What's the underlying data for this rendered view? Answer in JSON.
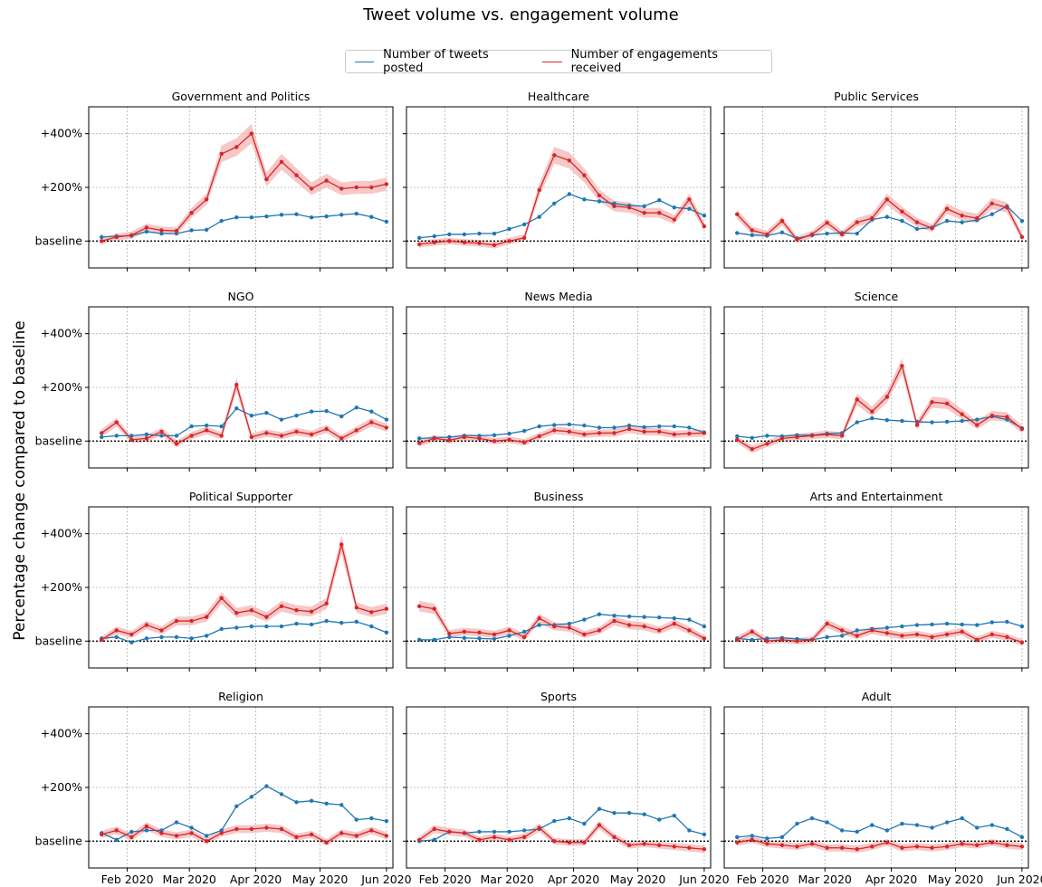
{
  "chart_data": {
    "type": "line",
    "title": "Tweet volume vs. engagement volume",
    "ylabel": "Percentage change compared to baseline",
    "xlabel": "",
    "legend": {
      "placement": "top-center",
      "items": [
        "Number of tweets posted",
        "Number of engagements received"
      ]
    },
    "colors": {
      "tweets": "#1f77b4",
      "engagements": "#d62728",
      "band": "#f4b6b6"
    },
    "grid": true,
    "y_ticks": [
      {
        "value": 0,
        "label": "baseline"
      },
      {
        "value": 200,
        "label": "+200%"
      },
      {
        "value": 400,
        "label": "+400%"
      }
    ],
    "ylim": [
      -100,
      500
    ],
    "x_ticks": [
      "Feb 2020",
      "Mar 2020",
      "Apr 2020",
      "May 2020",
      "Jun 2020"
    ],
    "x": [
      "2020-01-20",
      "2020-01-27",
      "2020-02-03",
      "2020-02-10",
      "2020-02-17",
      "2020-02-24",
      "2020-03-02",
      "2020-03-09",
      "2020-03-16",
      "2020-03-23",
      "2020-03-30",
      "2020-04-06",
      "2020-04-13",
      "2020-04-20",
      "2020-04-27",
      "2020-05-04",
      "2020-05-11",
      "2020-05-18",
      "2020-05-25",
      "2020-06-01"
    ],
    "panels": [
      {
        "title": "Government and Politics",
        "tweets": [
          15,
          18,
          20,
          35,
          28,
          28,
          40,
          42,
          75,
          88,
          88,
          92,
          98,
          100,
          88,
          92,
          98,
          102,
          90,
          72
        ],
        "engagements": [
          0,
          15,
          22,
          50,
          40,
          38,
          105,
          155,
          325,
          350,
          400,
          230,
          295,
          245,
          195,
          225,
          195,
          200,
          200,
          212
        ]
      },
      {
        "title": "Healthcare",
        "tweets": [
          12,
          18,
          25,
          25,
          28,
          28,
          45,
          62,
          90,
          140,
          175,
          155,
          148,
          140,
          132,
          130,
          152,
          125,
          120,
          95
        ],
        "engagements": [
          -12,
          -5,
          0,
          -5,
          -8,
          -15,
          0,
          12,
          190,
          320,
          300,
          245,
          170,
          130,
          125,
          105,
          105,
          80,
          155,
          55
        ]
      },
      {
        "title": "Public Services",
        "tweets": [
          30,
          22,
          20,
          32,
          10,
          22,
          28,
          30,
          28,
          80,
          90,
          75,
          45,
          50,
          75,
          70,
          78,
          100,
          130,
          75
        ],
        "engagements": [
          100,
          40,
          25,
          75,
          5,
          25,
          68,
          25,
          70,
          85,
          155,
          110,
          70,
          48,
          120,
          95,
          85,
          140,
          125,
          15
        ]
      },
      {
        "title": "NGO",
        "tweets": [
          15,
          20,
          20,
          25,
          20,
          20,
          55,
          58,
          55,
          122,
          95,
          105,
          80,
          95,
          110,
          112,
          92,
          125,
          110,
          80
        ],
        "engagements": [
          30,
          70,
          5,
          10,
          35,
          -10,
          20,
          40,
          20,
          210,
          15,
          30,
          20,
          35,
          25,
          45,
          10,
          40,
          70,
          50
        ]
      },
      {
        "title": "News Media",
        "tweets": [
          10,
          12,
          15,
          20,
          20,
          22,
          28,
          38,
          55,
          60,
          62,
          58,
          50,
          50,
          58,
          52,
          55,
          55,
          50,
          32
        ],
        "engagements": [
          -8,
          10,
          3,
          15,
          10,
          0,
          5,
          -5,
          18,
          40,
          35,
          25,
          30,
          30,
          45,
          35,
          35,
          25,
          28,
          30
        ]
      },
      {
        "title": "Science",
        "tweets": [
          18,
          12,
          20,
          18,
          22,
          22,
          28,
          30,
          70,
          85,
          78,
          75,
          72,
          70,
          72,
          75,
          80,
          92,
          80,
          48
        ],
        "engagements": [
          5,
          -30,
          -10,
          10,
          15,
          20,
          25,
          20,
          155,
          110,
          165,
          280,
          60,
          145,
          140,
          100,
          60,
          95,
          90,
          45
        ]
      },
      {
        "title": "Political Supporter",
        "tweets": [
          10,
          15,
          -5,
          10,
          15,
          15,
          10,
          20,
          45,
          50,
          55,
          55,
          55,
          65,
          62,
          75,
          68,
          72,
          55,
          32
        ],
        "engagements": [
          5,
          40,
          25,
          60,
          40,
          75,
          75,
          90,
          160,
          105,
          115,
          90,
          130,
          115,
          110,
          140,
          360,
          125,
          108,
          120
        ]
      },
      {
        "title": "Business",
        "tweets": [
          5,
          5,
          15,
          12,
          10,
          8,
          20,
          35,
          60,
          60,
          65,
          80,
          100,
          95,
          92,
          90,
          88,
          85,
          80,
          55
        ],
        "engagements": [
          130,
          120,
          28,
          35,
          32,
          25,
          40,
          15,
          85,
          55,
          50,
          25,
          40,
          75,
          60,
          55,
          40,
          65,
          40,
          10
        ]
      },
      {
        "title": "Arts and Entertainment",
        "tweets": [
          10,
          5,
          10,
          12,
          8,
          5,
          15,
          20,
          40,
          45,
          50,
          55,
          60,
          62,
          65,
          62,
          60,
          70,
          72,
          55
        ],
        "engagements": [
          5,
          35,
          0,
          5,
          0,
          5,
          65,
          40,
          20,
          40,
          30,
          20,
          25,
          15,
          25,
          35,
          5,
          25,
          15,
          -5
        ]
      },
      {
        "title": "Religion",
        "tweets": [
          30,
          5,
          35,
          40,
          40,
          70,
          50,
          20,
          40,
          130,
          165,
          205,
          175,
          145,
          150,
          140,
          135,
          80,
          85,
          75
        ],
        "engagements": [
          25,
          40,
          15,
          55,
          30,
          20,
          30,
          0,
          30,
          45,
          45,
          50,
          45,
          15,
          25,
          -5,
          30,
          20,
          40,
          20
        ]
      },
      {
        "title": "Sports",
        "tweets": [
          0,
          5,
          35,
          30,
          35,
          35,
          35,
          40,
          45,
          75,
          85,
          65,
          120,
          105,
          105,
          100,
          80,
          95,
          40,
          25
        ],
        "engagements": [
          5,
          45,
          35,
          30,
          5,
          15,
          5,
          15,
          50,
          0,
          -5,
          -5,
          60,
          15,
          -15,
          -10,
          -15,
          -20,
          -25,
          -30
        ]
      },
      {
        "title": "Adult",
        "tweets": [
          15,
          20,
          10,
          15,
          65,
          85,
          70,
          40,
          35,
          60,
          40,
          65,
          60,
          50,
          70,
          85,
          50,
          60,
          45,
          15
        ],
        "engagements": [
          -5,
          5,
          -10,
          -15,
          -20,
          -10,
          -25,
          -25,
          -30,
          -20,
          -5,
          -25,
          -20,
          -25,
          -20,
          -10,
          -15,
          -5,
          -15,
          -20
        ]
      }
    ]
  }
}
